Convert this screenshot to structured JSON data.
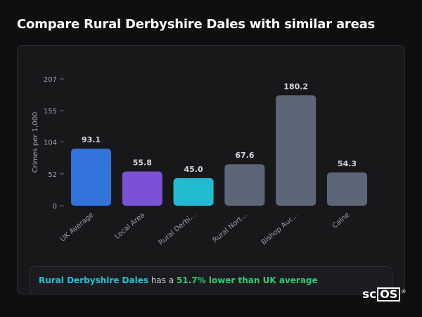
{
  "title": "Compare Rural Derbyshire Dales with similar areas",
  "chart_data": {
    "type": "bar",
    "ylabel": "Crimes per 1,000",
    "ylim": [
      0,
      207
    ],
    "yticks": [
      0,
      52,
      104,
      155,
      207
    ],
    "categories": [
      "UK Average",
      "Local Area",
      "Rural Derbi...",
      "Rural Nort...",
      "Bishop Auc...",
      "Calne"
    ],
    "values": [
      93.1,
      55.8,
      45.0,
      67.6,
      180.2,
      54.3
    ],
    "value_labels": [
      "93.1",
      "55.8",
      "45.0",
      "67.6",
      "180.2",
      "54.3"
    ],
    "colors": [
      "#3273dc",
      "#7b52d6",
      "#22bcd2",
      "#5c6677",
      "#5c6677",
      "#5c6677"
    ],
    "grid": false
  },
  "summary": {
    "area": "Rural Derbyshire Dales",
    "middle": " has a ",
    "difference": "51.7% lower than UK average"
  },
  "logo": {
    "prefix": "sc",
    "boxed": "OS",
    "mark": "®"
  }
}
